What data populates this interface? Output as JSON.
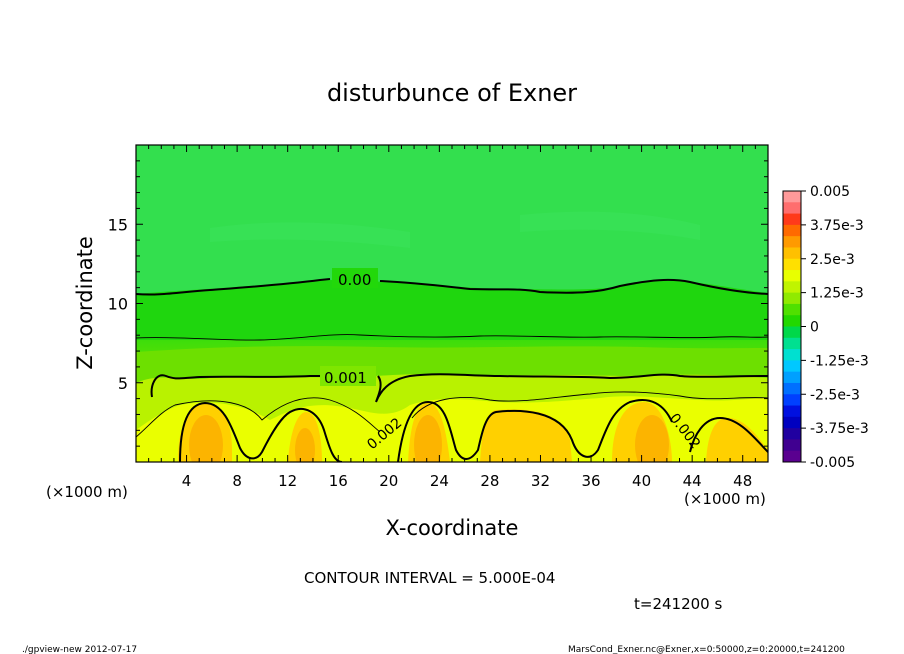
{
  "chart_data": {
    "type": "heatmap",
    "title": "disturbunce of Exner",
    "xlabel": "X-coordinate",
    "ylabel": "Z-coordinate",
    "x_unit": "(×1000 m)",
    "y_unit": "(×1000 m)",
    "xlim": [
      0,
      50
    ],
    "ylim": [
      0,
      20
    ],
    "x_ticks": [
      4,
      8,
      12,
      16,
      20,
      24,
      28,
      32,
      36,
      40,
      44,
      48
    ],
    "y_ticks": [
      5,
      10,
      15
    ],
    "colorbar": {
      "labels": [
        "0.005",
        "3.75e-3",
        "2.5e-3",
        "1.25e-3",
        "0",
        "-1.25e-3",
        "-2.5e-3",
        "-3.75e-3",
        "-0.005"
      ],
      "range": [
        -0.005,
        0.005
      ]
    },
    "contour_labels": [
      "0.00",
      "0.001",
      "0.002",
      "0.002"
    ],
    "contour_interval_text": "CONTOUR INTERVAL = 5.000E-04",
    "time_text": "t=241200 s",
    "grid": false
  },
  "footer": {
    "left": "./gpview-new   2012-07-17",
    "right": "MarsCond_Exner.nc@Exner,x=0:50000,z=0:20000,t=241200"
  }
}
